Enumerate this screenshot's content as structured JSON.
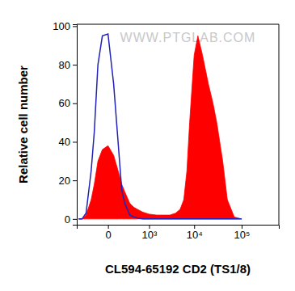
{
  "chart_data": {
    "type": "area",
    "x_label": "CL594-65192 CD2 (TS1/8)",
    "y_label": "Relative cell number",
    "annotations": [
      "WWW.PTGLAB.COM"
    ],
    "x": [
      -500,
      -400,
      -300,
      -200,
      -150,
      -100,
      -50,
      0,
      50,
      100,
      150,
      200,
      300,
      400,
      500,
      700,
      1000,
      1500,
      2000,
      3000,
      4000,
      5000,
      6000,
      7000,
      8000,
      10000,
      12000,
      15000,
      20000,
      25000,
      30000,
      40000,
      50000,
      70000,
      100000
    ],
    "series": [
      {
        "type": "line",
        "color": "#2222b8",
        "values": [
          0,
          0,
          3,
          25,
          45,
          80,
          95,
          96,
          70,
          40,
          15,
          8,
          2,
          1,
          0.5,
          0,
          0,
          0,
          0,
          0,
          0,
          0,
          0,
          0,
          0,
          0,
          0,
          0,
          0,
          0,
          0,
          0,
          0,
          0,
          0
        ]
      },
      {
        "type": "area",
        "color": "#ff0000",
        "values": [
          0,
          0,
          2,
          10,
          18,
          30,
          36,
          38,
          33,
          25,
          18,
          14,
          8,
          6,
          5,
          3.5,
          2.5,
          2,
          2,
          2,
          3,
          5,
          10,
          25,
          50,
          85,
          95,
          85,
          70,
          60,
          50,
          30,
          10,
          1,
          0
        ]
      }
    ],
    "xlim": [
      -560,
      600000
    ],
    "xticks": [
      0,
      {
        "value": 1000,
        "label": "10³"
      },
      {
        "value": 10000,
        "label": "10⁴"
      },
      {
        "value": 100000,
        "label": "10⁵"
      }
    ],
    "ylim": [
      -3,
      101
    ],
    "yticks": [
      0,
      20,
      40,
      60,
      80,
      100
    ]
  }
}
